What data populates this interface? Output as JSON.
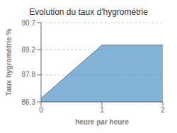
{
  "chart_data": {
    "type": "area",
    "title": "Evolution du taux d'hygrométrie",
    "xlabel": "heure par heure",
    "ylabel": "Taux hygrométrie %",
    "x": [
      0,
      1,
      2
    ],
    "values": [
      86.5,
      89.45,
      89.45
    ],
    "xlim": [
      0,
      2
    ],
    "ylim": [
      86.3,
      90.7
    ],
    "xticks": [
      0,
      1,
      2
    ],
    "yticks": [
      86.3,
      87.8,
      89.2,
      90.7
    ],
    "grid": "y"
  }
}
